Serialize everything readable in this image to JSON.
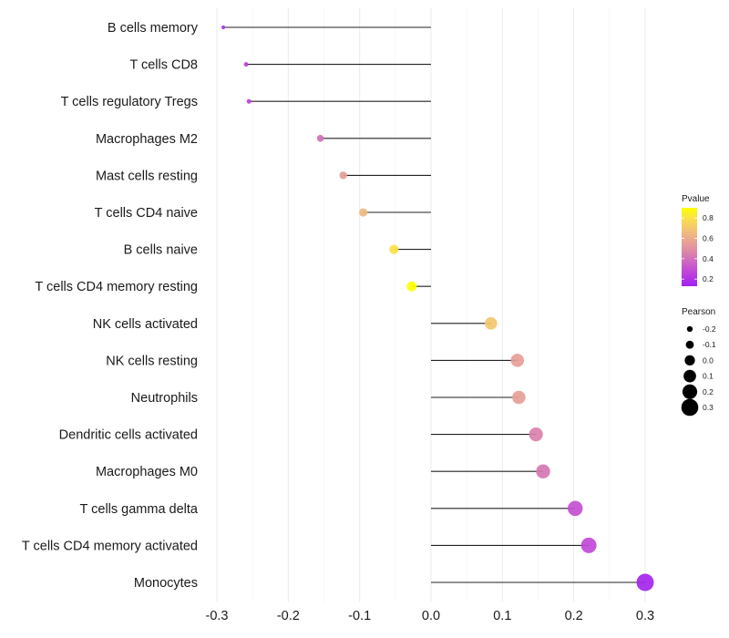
{
  "chart_data": {
    "type": "lollipop",
    "title": "",
    "xlabel": "",
    "ylabel": "",
    "xlim": [
      -0.3,
      0.3
    ],
    "x_ticks": [
      "-0.3",
      "-0.2",
      "-0.1",
      "0.0",
      "0.1",
      "0.2",
      "0.3"
    ],
    "x_tick_values": [
      -0.3,
      -0.2,
      -0.1,
      0.0,
      0.1,
      0.2,
      0.3
    ],
    "grid": true,
    "categories": [
      "B cells memory",
      "T cells CD8",
      "T cells regulatory  Tregs",
      "Macrophages M2",
      "Mast cells resting",
      "T cells CD4 naive",
      "B cells naive",
      "T cells CD4 memory resting",
      "NK cells activated",
      "NK cells resting",
      "Neutrophils",
      "Dendritic cells activated",
      "Macrophages M0",
      "T cells gamma delta",
      "T cells CD4 memory activated",
      "Monocytes"
    ],
    "pearson": [
      -0.291,
      -0.259,
      -0.255,
      -0.155,
      -0.123,
      -0.095,
      -0.052,
      -0.027,
      0.084,
      0.121,
      0.123,
      0.147,
      0.157,
      0.202,
      0.221,
      0.3
    ],
    "pvalue": [
      0.2,
      0.25,
      0.25,
      0.4,
      0.55,
      0.65,
      0.8,
      0.9,
      0.7,
      0.55,
      0.55,
      0.45,
      0.42,
      0.3,
      0.28,
      0.15
    ],
    "color_legend": {
      "title": "Pvalue",
      "ticks": [
        "0.8",
        "0.6",
        "0.4",
        "0.2"
      ],
      "tick_values": [
        0.8,
        0.6,
        0.4,
        0.2
      ],
      "range": [
        0.13,
        0.9
      ],
      "low_color": "#a020f0",
      "mid_color": "#e08a9a",
      "high_color": "#ffff00"
    },
    "size_legend": {
      "title": "Pearson",
      "ticks": [
        "-0.2",
        "-0.1",
        "0.0",
        "0.1",
        "0.2",
        "0.3"
      ],
      "tick_values": [
        -0.2,
        -0.1,
        0.0,
        0.1,
        0.2,
        0.3
      ]
    },
    "legend_position": "right"
  }
}
